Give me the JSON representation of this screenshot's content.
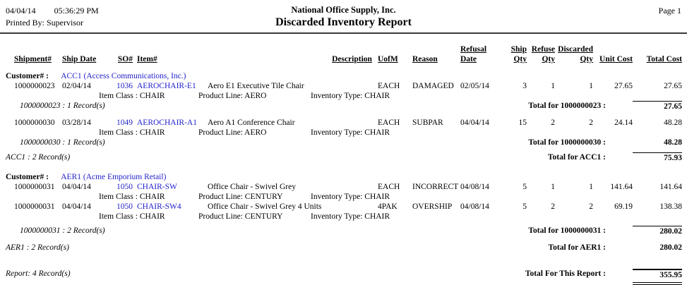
{
  "colors": {
    "link_blue": "#2222CC",
    "text": "#000000",
    "background": "#FFFFFF"
  },
  "header": {
    "date": "04/04/14",
    "time": "05:36:29 PM",
    "printed_by": "Printed By: Supervisor",
    "company": "National Office Supply, Inc.",
    "title": "Discarded Inventory Report",
    "page": "Page 1"
  },
  "table_headers": {
    "refusal": "Refusal",
    "ship": "Ship",
    "refuse": "Refuse",
    "discarded": "Discarded",
    "shipment": "Shipment#",
    "ship_date": "Ship Date",
    "so": "SO#",
    "item": "Item#",
    "description": "Description",
    "uofm": "UofM",
    "reason": "Reason",
    "date": "Date",
    "qty": "Qty",
    "unit_cost": "Unit Cost",
    "total_cost": "Total Cost"
  },
  "customers": [
    {
      "label": "Customer# :",
      "name": "ACC1 (Access Communications, Inc.)",
      "shipments": [
        {
          "rows": [
            {
              "shipment": "1000000023",
              "ship_date": "02/04/14",
              "so": "1036",
              "item": "AEROCHAIR-E1",
              "desc": "Aero E1 Executive Tile Chair",
              "uofm": "EACH",
              "reason": "DAMAGED",
              "refusal_date": "02/05/14",
              "ship_qty": "3",
              "refuse_qty": "1",
              "discarded_qty": "1",
              "unit_cost": "27.65",
              "total_cost": "27.65",
              "item_class": "Item Class : CHAIR",
              "product_line": "Product Line: AERO",
              "inventory_type": "Inventory Type: CHAIR"
            }
          ],
          "record_note": "1000000023 : 1 Record(s)",
          "total_label": "Total for 1000000023 :",
          "total_value": "27.65"
        },
        {
          "rows": [
            {
              "shipment": "1000000030",
              "ship_date": "03/28/14",
              "so": "1049",
              "item": "AEROCHAIR-A1",
              "desc": "Aero A1 Conference Chair",
              "uofm": "EACH",
              "reason": "SUBPAR",
              "refusal_date": "04/04/14",
              "ship_qty": "15",
              "refuse_qty": "2",
              "discarded_qty": "2",
              "unit_cost": "24.14",
              "total_cost": "48.28",
              "item_class": "Item Class : CHAIR",
              "product_line": "Product Line: AERO",
              "inventory_type": "Inventory Type: CHAIR"
            }
          ],
          "record_note": "1000000030 : 1 Record(s)",
          "total_label": "Total for 1000000030 :",
          "total_value": "48.28"
        }
      ],
      "record_note": "ACC1 : 2 Record(s)",
      "total_label": "Total for ACC1 :",
      "total_value": "75.93"
    },
    {
      "label": "Customer# :",
      "name": "AER1 (Acme Emporium Retail)",
      "shipments": [
        {
          "rows": [
            {
              "shipment": "1000000031",
              "ship_date": "04/04/14",
              "so": "1050",
              "item": "CHAIR-SW",
              "desc": "Office Chair - Swivel Grey",
              "uofm": "EACH",
              "reason": "INCORRECT",
              "refusal_date": "04/08/14",
              "ship_qty": "5",
              "refuse_qty": "1",
              "discarded_qty": "1",
              "unit_cost": "141.64",
              "total_cost": "141.64",
              "item_class": "Item Class : CHAIR",
              "product_line": "Product Line: CENTURY",
              "inventory_type": "Inventory Type: CHAIR"
            },
            {
              "shipment": "1000000031",
              "ship_date": "04/04/14",
              "so": "1050",
              "item": "CHAIR-SW4",
              "desc": "Office Chair - Swivel Grey 4 Units",
              "uofm": "4PAK",
              "reason": "OVERSHIP",
              "refusal_date": "04/08/14",
              "ship_qty": "5",
              "refuse_qty": "2",
              "discarded_qty": "2",
              "unit_cost": "69.19",
              "total_cost": "138.38",
              "item_class": "Item Class : CHAIR",
              "product_line": "Product Line: CENTURY",
              "inventory_type": "Inventory Type: CHAIR"
            }
          ],
          "record_note": "1000000031 : 2 Record(s)",
          "total_label": "Total for 1000000031 :",
          "total_value": "280.02"
        }
      ],
      "record_note": "AER1 : 2 Record(s)",
      "total_label": "Total for AER1 :",
      "total_value": "280.02"
    }
  ],
  "footer": {
    "record_note": "Report: 4 Record(s)",
    "total_label": "Total For This Report :",
    "total_value": "355.95"
  }
}
